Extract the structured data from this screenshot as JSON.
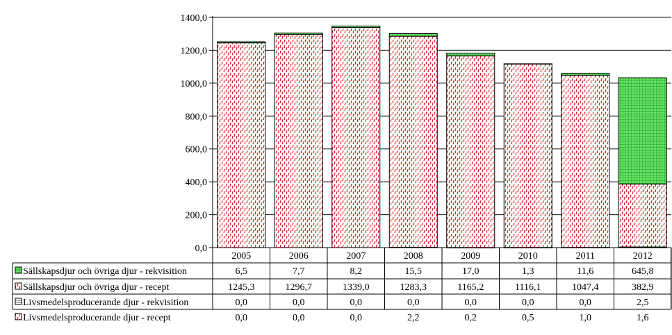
{
  "chart_data": {
    "type": "bar",
    "stacked": true,
    "categories": [
      "2005",
      "2006",
      "2007",
      "2008",
      "2009",
      "2010",
      "2011",
      "2012"
    ],
    "ylim": [
      0,
      1400
    ],
    "yticks": [
      "0,0",
      "200,0",
      "400,0",
      "600,0",
      "800,0",
      "1000,0",
      "1200,0",
      "1400,0"
    ],
    "grid": true,
    "legend_placement": "data-table-left",
    "series": [
      {
        "name": "Livsmedelsproducerande djur - recept",
        "values": [
          0.0,
          0.0,
          0.0,
          2.2,
          0.2,
          0.5,
          1.0,
          1.6
        ],
        "labels": [
          "0,0",
          "0,0",
          "0,0",
          "2,2",
          "0,2",
          "0,5",
          "1,0",
          "1,6"
        ],
        "color": "#cc0000",
        "pattern": "red-dashes"
      },
      {
        "name": "Livsmedelsproducerande djur - rekvisition",
        "values": [
          0.0,
          0.0,
          0.0,
          0.0,
          0.0,
          0.0,
          0.0,
          2.5
        ],
        "labels": [
          "0,0",
          "0,0",
          "0,0",
          "0,0",
          "0,0",
          "0,0",
          "0,0",
          "2,5"
        ],
        "color": "#666666",
        "pattern": "horizontal-lines"
      },
      {
        "name": "Sällskapsdjur och övriga djur - recept",
        "values": [
          1245.3,
          1296.7,
          1339.0,
          1283.3,
          1165.2,
          1116.1,
          1047.4,
          382.9
        ],
        "labels": [
          "1245,3",
          "1296,7",
          "1339,0",
          "1283,3",
          "1165,2",
          "1116,1",
          "1047,4",
          "382,9"
        ],
        "color": "#cc0000",
        "pattern": "red-dashes"
      },
      {
        "name": "Sällskapsdjur och övriga djur - rekvisition",
        "values": [
          6.5,
          7.7,
          8.2,
          15.5,
          17.0,
          1.3,
          11.6,
          645.8
        ],
        "labels": [
          "6,5",
          "7,7",
          "8,2",
          "15,5",
          "17,0",
          "1,3",
          "11,6",
          "645,8"
        ],
        "color": "#33cc33",
        "pattern": "green-grid"
      }
    ],
    "table_row_order": [
      3,
      2,
      1,
      0
    ]
  }
}
